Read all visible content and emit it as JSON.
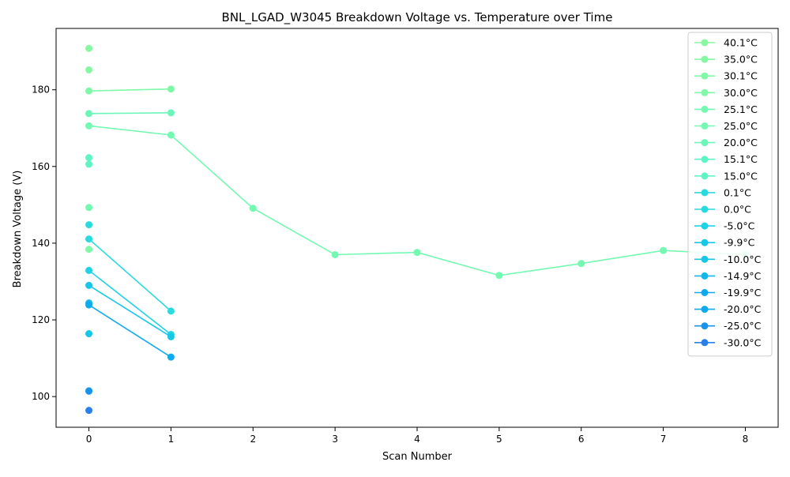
{
  "chart_data": {
    "type": "line",
    "title": "BNL_LGAD_W3045 Breakdown Voltage vs. Temperature over Time",
    "xlabel": "Scan Number",
    "ylabel": "Breakdown Voltage (V)",
    "xlim": [
      -0.4,
      8.4
    ],
    "ylim": [
      92,
      196
    ],
    "xticks": [
      0,
      1,
      2,
      3,
      4,
      5,
      6,
      7,
      8
    ],
    "yticks": [
      100,
      120,
      140,
      160,
      180
    ],
    "grid": false,
    "legend_position": "top-right",
    "series": [
      {
        "name": "40.1°C",
        "color": "#86f8a0",
        "x": [
          0
        ],
        "y": [
          190.8
        ]
      },
      {
        "name": "35.0°C",
        "color": "#84f8a3",
        "x": [
          0
        ],
        "y": [
          185.2
        ]
      },
      {
        "name": "30.1°C",
        "color": "#7ff9a8",
        "x": [
          0,
          1
        ],
        "y": [
          179.7,
          180.2
        ]
      },
      {
        "name": "30.0°C",
        "color": "#7ff9a8",
        "x": [
          0
        ],
        "y": [
          138.4
        ]
      },
      {
        "name": "25.1°C",
        "color": "#73f9b1",
        "x": [
          0,
          1,
          2,
          3,
          4,
          5,
          6,
          7,
          8
        ],
        "y": [
          170.6,
          168.2,
          149.1,
          137.0,
          137.6,
          131.6,
          134.7,
          138.1,
          137.0
        ]
      },
      {
        "name": "25.0°C",
        "color": "#73f9b1",
        "x": [
          0
        ],
        "y": [
          149.3
        ]
      },
      {
        "name": "20.0°C",
        "color": "#6cf6b9",
        "x": [
          0,
          1
        ],
        "y": [
          173.8,
          174.0
        ]
      },
      {
        "name": "15.1°C",
        "color": "#5ff4c3",
        "x": [
          0
        ],
        "y": [
          162.3
        ]
      },
      {
        "name": "15.0°C",
        "color": "#5ff4c3",
        "x": [
          0
        ],
        "y": [
          160.6
        ]
      },
      {
        "name": "0.1°C",
        "color": "#2adadf",
        "x": [
          0
        ],
        "y": [
          144.8
        ]
      },
      {
        "name": "0.0°C",
        "color": "#2adadf",
        "x": [
          0,
          1
        ],
        "y": [
          141.1,
          122.3
        ]
      },
      {
        "name": "-5.0°C",
        "color": "#1fd3e4",
        "x": [
          0,
          1
        ],
        "y": [
          132.9,
          116.2
        ]
      },
      {
        "name": "-9.9°C",
        "color": "#18c6e8",
        "x": [
          0
        ],
        "y": [
          116.4
        ]
      },
      {
        "name": "-10.0°C",
        "color": "#18c6e8",
        "x": [
          0,
          1
        ],
        "y": [
          129.0,
          115.6
        ]
      },
      {
        "name": "-14.9°C",
        "color": "#12b8ec",
        "x": [
          0
        ],
        "y": [
          124.4
        ]
      },
      {
        "name": "-19.9°C",
        "color": "#0faaeb",
        "x": [
          0,
          1
        ],
        "y": [
          123.9,
          110.3
        ]
      },
      {
        "name": "-20.0°C",
        "color": "#0faaeb",
        "x": [
          0
        ],
        "y": [
          101.5
        ]
      },
      {
        "name": "-25.0°C",
        "color": "#1a92ea",
        "x": [
          0
        ],
        "y": [
          101.4
        ]
      },
      {
        "name": "-30.0°C",
        "color": "#2a80ea",
        "x": [
          0
        ],
        "y": [
          96.4
        ]
      }
    ]
  }
}
